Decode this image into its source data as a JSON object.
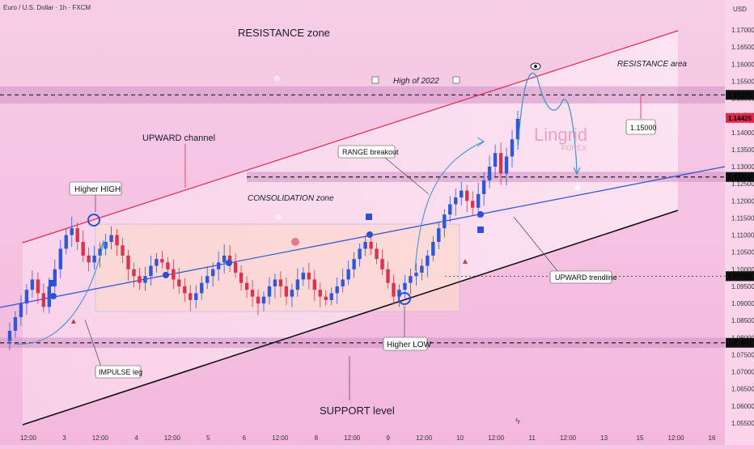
{
  "header": {
    "symbol_title": "Euro / U.S. Dollar · 1h · FXCM",
    "currency": "USD"
  },
  "annotations": {
    "resistance_zone": "RESISTANCE zone",
    "resistance_area": "RESISTANCE area",
    "high_2022": "High of 2022",
    "upward_channel": "UPWARD channel",
    "range_breakout": "RANGE breakout",
    "higher_high": "Higher HIGH",
    "consolidation_zone": "CONSOLIDATION zone",
    "upward_trendline": "UPWARD trendline",
    "higher_low": "Higher LOW",
    "impulse_leg": "IMPULSE leg",
    "support_level": "SUPPORT level",
    "target_box": "1.15000"
  },
  "watermark": {
    "brand": "Lingrid",
    "sub": "FOREX"
  },
  "price_tags": [
    {
      "value": "1.15100",
      "style": "dark",
      "price": 1.151
    },
    {
      "value": "1.14426",
      "style": "red",
      "price": 1.14426
    },
    {
      "value": "1.12700",
      "style": "dark",
      "price": 1.127
    },
    {
      "value": "1.09798",
      "style": "dark",
      "price": 1.09798
    },
    {
      "value": "1.07849",
      "style": "dark",
      "price": 1.07849
    }
  ],
  "chart_data": {
    "type": "candlestick",
    "title": "Euro / U.S. Dollar · 1h · FXCM",
    "ylim": [
      1.05,
      1.175
    ],
    "y_ticks": [
      "1.17000",
      "1.16500",
      "1.16000",
      "1.15500",
      "1.15000",
      "1.14500",
      "1.14000",
      "1.13500",
      "1.13000",
      "1.12500",
      "1.12000",
      "1.11500",
      "1.11000",
      "1.10500",
      "1.10000",
      "1.09500",
      "1.09000",
      "1.08500",
      "1.08000",
      "1.07500",
      "1.07000",
      "1.06500",
      "1.06000",
      "1.05500"
    ],
    "x_ticks": [
      "12:00",
      "3",
      "12:00",
      "4",
      "12:00",
      "5",
      "6",
      "12:00",
      "8",
      "12:00",
      "9",
      "12:00",
      "10",
      "12:00",
      "11",
      "12:00",
      "13",
      "15",
      "12:00",
      "16"
    ],
    "levels": [
      1.151,
      1.127,
      1.09798,
      1.07849
    ],
    "zones": [
      [
        1.1485,
        1.1535
      ],
      [
        1.1255,
        1.1285
      ],
      [
        1.077,
        1.08
      ]
    ],
    "close_path": [
      1.079,
      1.082,
      1.086,
      1.09,
      1.094,
      1.097,
      1.093,
      1.089,
      1.095,
      1.1,
      1.106,
      1.11,
      1.112,
      1.108,
      1.104,
      1.102,
      1.104,
      1.106,
      1.108,
      1.11,
      1.107,
      1.104,
      1.1,
      1.098,
      1.096,
      1.098,
      1.101,
      1.103,
      1.102,
      1.1,
      1.097,
      1.095,
      1.093,
      1.091,
      1.093,
      1.096,
      1.098,
      1.1,
      1.102,
      1.104,
      1.102,
      1.099,
      1.096,
      1.094,
      1.092,
      1.09,
      1.092,
      1.095,
      1.097,
      1.095,
      1.092,
      1.094,
      1.097,
      1.099,
      1.097,
      1.094,
      1.092,
      1.091,
      1.093,
      1.095,
      1.097,
      1.1,
      1.103,
      1.106,
      1.108,
      1.106,
      1.103,
      1.1,
      1.096,
      1.092,
      1.094,
      1.096,
      1.098,
      1.099,
      1.101,
      1.104,
      1.108,
      1.112,
      1.116,
      1.119,
      1.121,
      1.123,
      1.12,
      1.118,
      1.122,
      1.126,
      1.13,
      1.134,
      1.128,
      1.133,
      1.138,
      1.144
    ]
  }
}
